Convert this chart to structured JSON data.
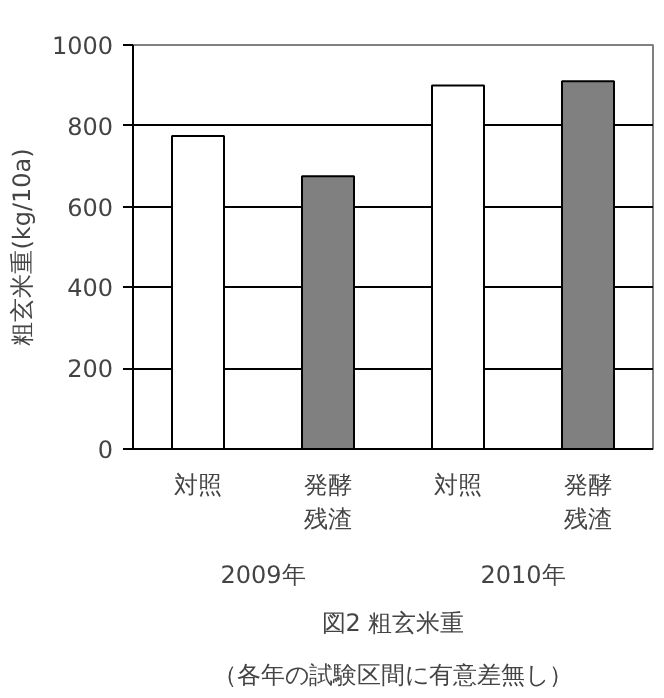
{
  "chart_data": {
    "type": "bar",
    "title": "図2 粗玄米重",
    "subtitle": "（各年の試験区間に有意差無し）",
    "ylabel": "粗玄米重(kg/10a)",
    "categories": [
      "対照",
      "発酵残渣",
      "対照",
      "発酵残渣"
    ],
    "values": [
      775,
      675,
      900,
      910
    ],
    "colors": [
      "#ffffff",
      "#808080",
      "#ffffff",
      "#808080"
    ],
    "annotations": [
      "2009年",
      "2010年"
    ],
    "ylim": [
      0,
      1000
    ],
    "yticks": [
      0,
      200,
      400,
      600,
      800,
      1000
    ],
    "grid": "y"
  }
}
